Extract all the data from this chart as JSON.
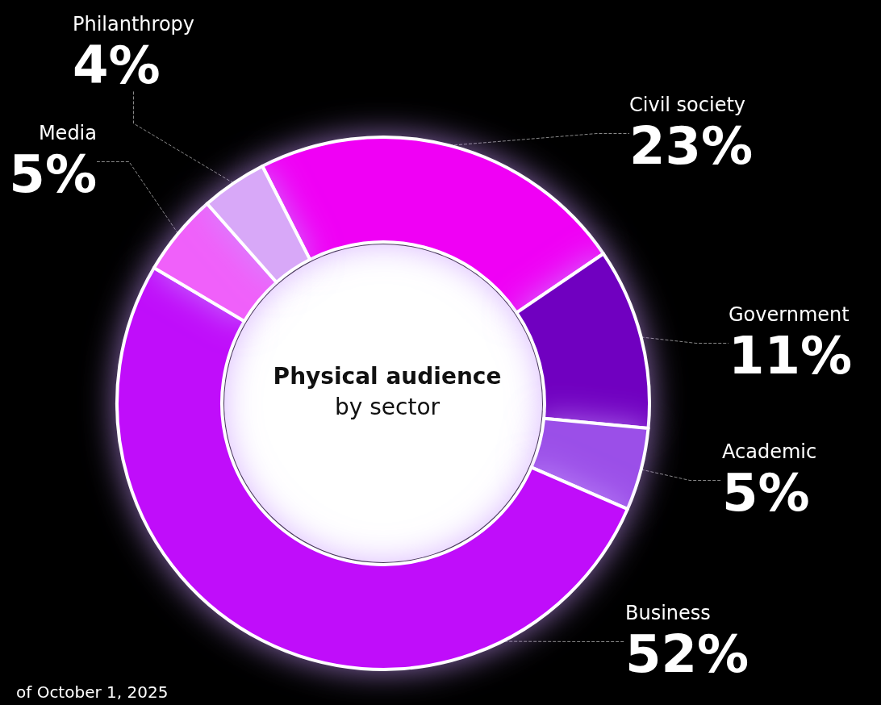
{
  "chart_data": {
    "type": "donut",
    "title": "Physical audience",
    "subtitle": "by sector",
    "categories": [
      "Civil society",
      "Government",
      "Academic",
      "Business",
      "Media",
      "Philanthropy"
    ],
    "values": [
      23,
      11,
      5,
      52,
      5,
      4
    ],
    "colors": [
      "#f000f5",
      "#7000c0",
      "#9b50e8",
      "#c010fa",
      "#f060fa",
      "#d8a8f8"
    ],
    "value_labels": [
      "23%",
      "11%",
      "5%",
      "52%",
      "5%",
      "4%"
    ],
    "legend": false,
    "annotations": [
      "of October 1, 2025"
    ]
  }
}
